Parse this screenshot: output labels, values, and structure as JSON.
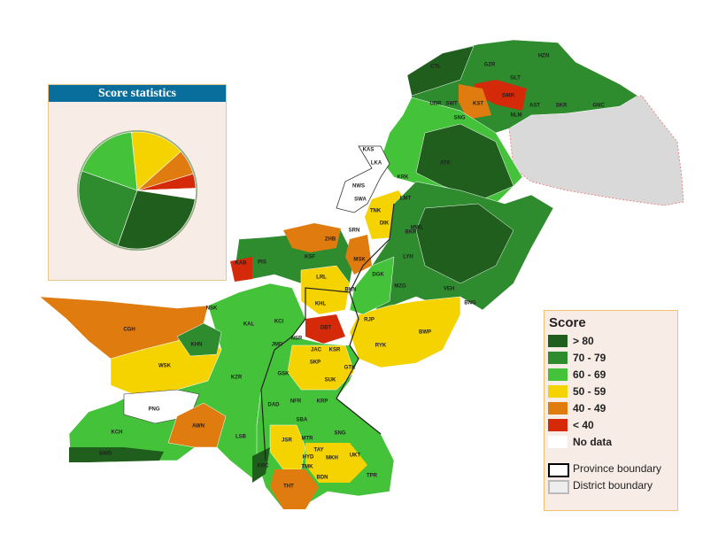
{
  "chart_data": {
    "type": "pie",
    "title": "Score statistics",
    "categories": [
      "> 80",
      "70 - 79",
      "60 - 69",
      "50 - 59",
      "40 - 49",
      "< 40",
      "No data"
    ],
    "values": [
      28,
      25,
      18,
      15,
      7,
      4,
      3
    ],
    "colors": [
      "#1f5e1c",
      "#2e8b2e",
      "#44c33a",
      "#f5d300",
      "#e07b10",
      "#d42a0a",
      "#ffffff"
    ],
    "legend_title": "Score"
  },
  "boundaries": [
    "Province boundary",
    "District boundary"
  ],
  "map": {
    "labels": [
      "CTL",
      "GZR",
      "HZN",
      "GLT",
      "DMR",
      "KST",
      "AST",
      "SKR",
      "GNC",
      "UDR",
      "SWT",
      "SNG",
      "NLM",
      "KAS",
      "LKA",
      "NWS",
      "SWA",
      "TNK",
      "DIK",
      "SRN",
      "ATK",
      "KRK",
      "LMT",
      "MWL",
      "BKR",
      "ZHB",
      "MSK",
      "KSF",
      "PIS",
      "KAB",
      "LRL",
      "BKN",
      "DGK",
      "LYH",
      "MZG",
      "KHL",
      "NSK",
      "KAL",
      "KCI",
      "DBT",
      "RJP",
      "RYK",
      "BWP",
      "BNG",
      "VEH",
      "CGH",
      "KHN",
      "WSK",
      "NSR",
      "JAC",
      "KSR",
      "SKP",
      "GTK",
      "JMD",
      "GSK",
      "SUK",
      "KZR",
      "DAD",
      "NFR",
      "KRP",
      "SBA",
      "PNG",
      "AWN",
      "KCH",
      "LSB",
      "JSR",
      "MTR",
      "SNG",
      "TAY",
      "HYD",
      "MKH",
      "UKT",
      "TMK",
      "BDN",
      "GWD",
      "THT",
      "TPR",
      "KRC"
    ]
  }
}
